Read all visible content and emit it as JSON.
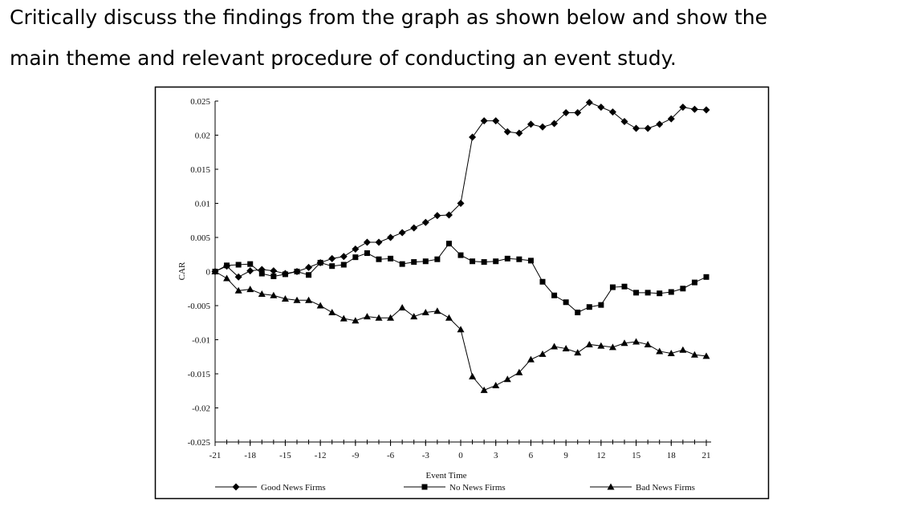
{
  "question": [
    "Critically discuss the findings from the graph as shown below and show the",
    "main theme and relevant procedure of conducting an event study."
  ],
  "chart_data": {
    "type": "line",
    "xlabel": "Event Time",
    "ylabel": "CAR",
    "x": [
      -21,
      -20,
      -19,
      -18,
      -17,
      -16,
      -15,
      -14,
      -13,
      -12,
      -11,
      -10,
      -9,
      -8,
      -7,
      -6,
      -5,
      -4,
      -3,
      -2,
      -1,
      0,
      1,
      2,
      3,
      4,
      5,
      6,
      7,
      8,
      9,
      10,
      11,
      12,
      13,
      14,
      15,
      16,
      17,
      18,
      19,
      20,
      21
    ],
    "xlim": [
      -21,
      21
    ],
    "xticks": [
      -21,
      -18,
      -15,
      -12,
      -9,
      -6,
      -3,
      0,
      3,
      6,
      9,
      12,
      15,
      18,
      21
    ],
    "ylim": [
      -0.025,
      0.025
    ],
    "yticks": [
      0.025,
      0.02,
      0.015,
      0.01,
      0.005,
      0,
      -0.005,
      -0.01,
      -0.015,
      -0.02,
      -0.025
    ],
    "legend": "bottom",
    "series": [
      {
        "name": "Good News Firms",
        "color": "#000000",
        "values": [
          0,
          0.0008,
          -0.0008,
          0.0001,
          0.0003,
          0.0001,
          -0.0003,
          0,
          0.0006,
          0.0013,
          0.0019,
          0.0022,
          0.0033,
          0.0043,
          0.0043,
          0.005,
          0.0057,
          0.0064,
          0.0072,
          0.0082,
          0.0083,
          0.01,
          0.0197,
          0.0221,
          0.0221,
          0.0205,
          0.0203,
          0.0216,
          0.0212,
          0.0217,
          0.0233,
          0.0233,
          0.0248,
          0.0241,
          0.0234,
          0.022,
          0.021,
          0.021,
          0.0216,
          0.0224,
          0.0241,
          0.0238,
          0.0237
        ]
      },
      {
        "name": "No News Firms",
        "color": "#000000",
        "values": [
          0,
          0.0009,
          0.001,
          0.0011,
          -0.0003,
          -0.0007,
          -0.0004,
          0,
          -0.0005,
          0.0013,
          0.0008,
          0.001,
          0.0021,
          0.0027,
          0.0018,
          0.0019,
          0.0011,
          0.0014,
          0.0015,
          0.0018,
          0.0041,
          0.0024,
          0.0015,
          0.0014,
          0.0015,
          0.0019,
          0.0018,
          0.0016,
          -0.0015,
          -0.0035,
          -0.0045,
          -0.006,
          -0.0052,
          -0.0049,
          -0.0023,
          -0.0022,
          -0.0031,
          -0.0031,
          -0.0032,
          -0.003,
          -0.0025,
          -0.0016,
          -0.0008
        ]
      },
      {
        "name": "Bad News Firms",
        "color": "#000000",
        "values": [
          0,
          -0.001,
          -0.0028,
          -0.0026,
          -0.0033,
          -0.0035,
          -0.004,
          -0.0042,
          -0.0042,
          -0.005,
          -0.006,
          -0.0069,
          -0.0072,
          -0.0066,
          -0.0068,
          -0.0068,
          -0.0053,
          -0.0066,
          -0.006,
          -0.0058,
          -0.0068,
          -0.0085,
          -0.0154,
          -0.0174,
          -0.0167,
          -0.0158,
          -0.0148,
          -0.0129,
          -0.0121,
          -0.011,
          -0.0113,
          -0.0119,
          -0.0107,
          -0.0109,
          -0.0111,
          -0.0105,
          -0.0103,
          -0.0107,
          -0.0117,
          -0.012,
          -0.0115,
          -0.0122,
          -0.0124
        ]
      }
    ]
  }
}
